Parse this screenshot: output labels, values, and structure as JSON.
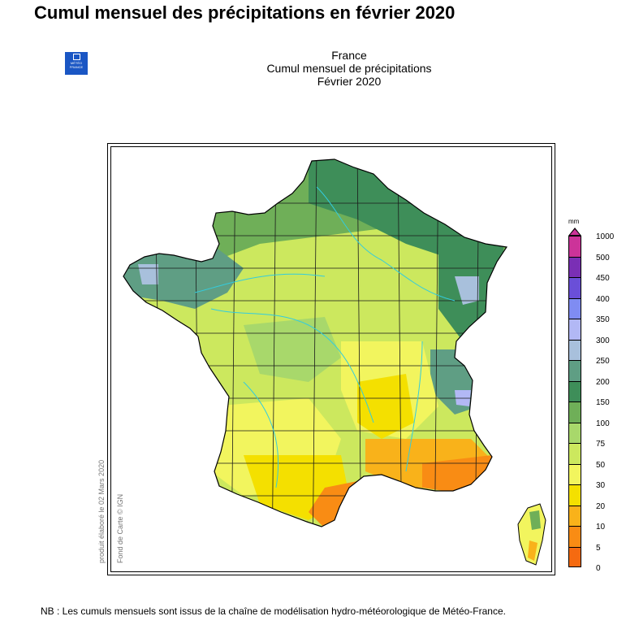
{
  "page_title": "Cumul mensuel des précipitations en février 2020",
  "logo_text": "MÉTÉO FRANCE",
  "map_heading": {
    "line1": "France",
    "line2": "Cumul mensuel de précipitations",
    "line3": "Février 2020"
  },
  "side_notes": {
    "produced": "produit élaboré le 02 Mars 2020",
    "basemap": "Fond de Carte © IGN"
  },
  "legend": {
    "unit": "mm",
    "labels": [
      "1000",
      "500",
      "450",
      "400",
      "350",
      "300",
      "250",
      "200",
      "150",
      "100",
      "75",
      "50",
      "30",
      "20",
      "10",
      "5",
      "0"
    ],
    "colors": [
      "#cc3399",
      "#7a2fb5",
      "#6a4fd8",
      "#7f8cf2",
      "#b2b8f5",
      "#a8c0dc",
      "#5f9e84",
      "#3e8e59",
      "#6faf58",
      "#a8d86b",
      "#cce85e",
      "#f2f55e",
      "#f4e000",
      "#f9b21a",
      "#f98c14",
      "#f56a10"
    ]
  },
  "footnote": "NB : Les cumuls mensuels sont issus de la chaîne de modélisation hydro-météorologique de Météo-France."
}
